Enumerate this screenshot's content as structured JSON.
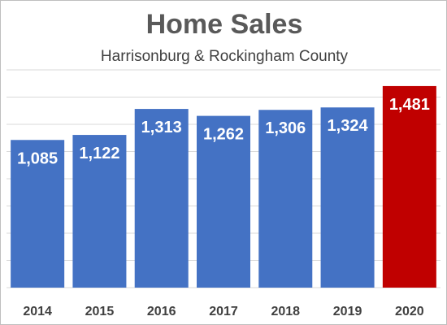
{
  "chart_data": {
    "type": "bar",
    "title": "Home Sales",
    "subtitle": "Harrisonburg & Rockingham County",
    "categories": [
      "2014",
      "2015",
      "2016",
      "2017",
      "2018",
      "2019",
      "2020"
    ],
    "values": [
      1085,
      1122,
      1313,
      1262,
      1306,
      1324,
      1481
    ],
    "data_labels": [
      "1,085",
      "1,122",
      "1,313",
      "1,262",
      "1,306",
      "1,324",
      "1,481"
    ],
    "xlabel": "",
    "ylabel": "",
    "ylim": [
      0,
      1600
    ],
    "grid": true,
    "legend": "none",
    "colors": {
      "default_bar": "#4472c4",
      "highlight_bar": "#c00000",
      "gridline": "#d9d9d9"
    },
    "highlight_category": "2020"
  }
}
